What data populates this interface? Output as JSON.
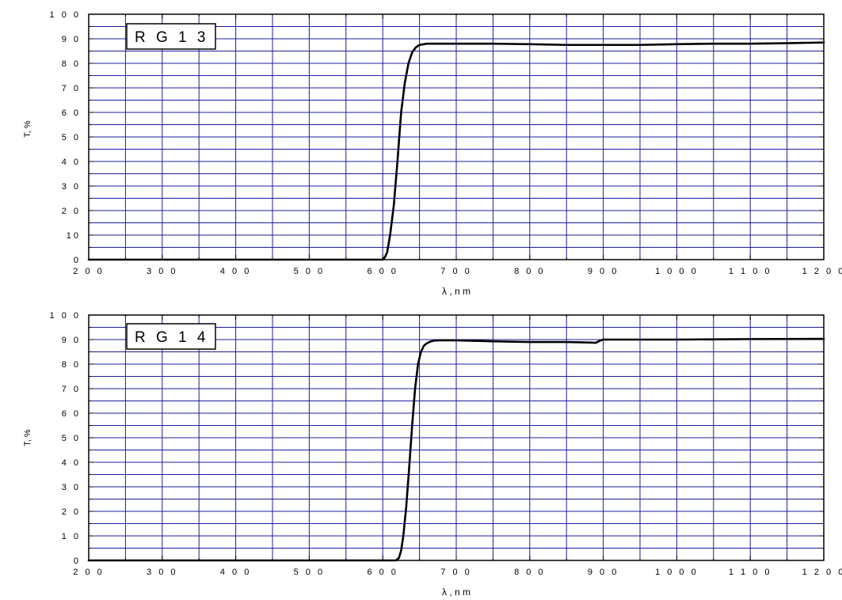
{
  "chart_data": [
    {
      "type": "line",
      "legend": "RG13",
      "legend_display": "R G 1 3",
      "xlabel": "λ , n m",
      "ylabel": "T, %",
      "xlim": [
        200,
        1200
      ],
      "ylim": [
        0,
        100
      ],
      "x_ticks": [
        200,
        300,
        400,
        500,
        600,
        700,
        800,
        900,
        1000,
        1100,
        1200
      ],
      "x_tick_labels": [
        "2 0 0",
        "3 0 0",
        "4 0 0",
        "5 0 0",
        "6 0 0",
        "7 0 0",
        "8 0 0",
        "9 0 0",
        "1 0 0 0",
        "1 1 0 0",
        "1 2 0 0"
      ],
      "y_ticks": [
        0,
        10,
        20,
        30,
        40,
        50,
        60,
        70,
        80,
        90,
        100
      ],
      "y_tick_labels": [
        "0",
        "10",
        "2 0",
        "3 0",
        "4 0",
        "5 0",
        "6 0",
        "7 0",
        "8 0",
        "9 0",
        "1 0 0"
      ],
      "grid": true,
      "legend_position": "top-left",
      "series": [
        {
          "color": "#000000",
          "x": [
            200,
            500,
            595,
            600,
            603,
            606,
            610,
            615,
            620,
            625,
            630,
            635,
            640,
            645,
            650,
            660,
            680,
            700,
            750,
            800,
            850,
            900,
            950,
            1000,
            1050,
            1100,
            1150,
            1200
          ],
          "y": [
            0,
            0,
            0,
            0,
            1,
            3,
            10,
            22,
            40,
            60,
            72,
            80,
            84.5,
            86.5,
            87.5,
            88,
            88,
            88,
            88,
            87.8,
            87.5,
            87.5,
            87.5,
            87.8,
            88,
            88,
            88.2,
            88.5
          ]
        }
      ]
    },
    {
      "type": "line",
      "legend": "RG14",
      "legend_display": "R G 1 4",
      "xlabel": "λ , n m",
      "ylabel": "T, %",
      "xlim": [
        200,
        1200
      ],
      "ylim": [
        0,
        100
      ],
      "x_ticks": [
        200,
        300,
        400,
        500,
        600,
        700,
        800,
        900,
        1000,
        1100,
        1200
      ],
      "x_tick_labels": [
        "2 0 0",
        "3 0 0",
        "4 0 0",
        "5 0 0",
        "6 0 0",
        "7 0 0",
        "8 0 0",
        "9 0 0",
        "1 0 0 0",
        "1 1 0 0",
        "1 2 0 0"
      ],
      "y_ticks": [
        0,
        10,
        20,
        30,
        40,
        50,
        60,
        70,
        80,
        90,
        100
      ],
      "y_tick_labels": [
        "0",
        "1 0",
        "2 0",
        "3 0",
        "4 0",
        "5 0",
        "6 0",
        "7 0",
        "8 0",
        "9 0",
        "1 0 0"
      ],
      "grid": true,
      "legend_position": "top-left",
      "series": [
        {
          "color": "#000000",
          "x": [
            200,
            600,
            618,
            622,
            625,
            628,
            632,
            636,
            640,
            644,
            648,
            652,
            656,
            660,
            665,
            670,
            680,
            700,
            750,
            800,
            850,
            880,
            890,
            895,
            900,
            950,
            1000,
            1100,
            1200
          ],
          "y": [
            0,
            0,
            0,
            1,
            4,
            10,
            22,
            38,
            55,
            70,
            80,
            85,
            87.5,
            88.5,
            89.2,
            89.6,
            89.7,
            89.7,
            89.3,
            89,
            89,
            88.8,
            88.7,
            89.5,
            90,
            90,
            90,
            90.2,
            90.3
          ]
        }
      ]
    }
  ]
}
